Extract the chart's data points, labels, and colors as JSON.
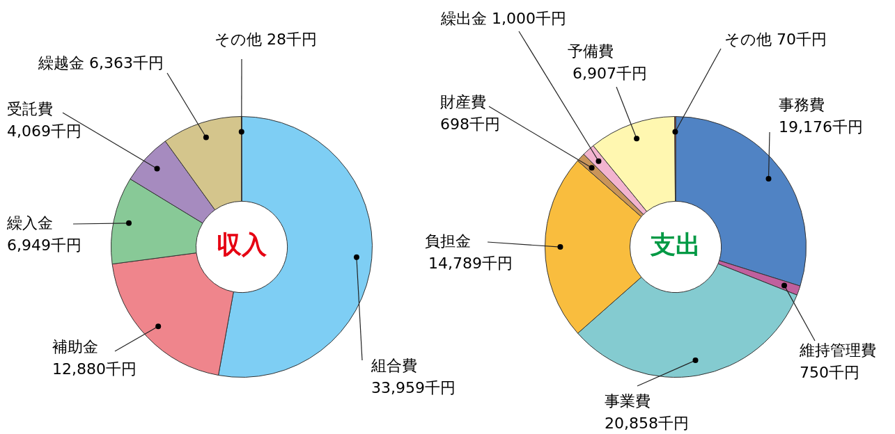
{
  "chart_data": [
    {
      "type": "donut",
      "title": "収入",
      "categories": [
        "組合費",
        "補助金",
        "繰入金",
        "受託費",
        "繰越金",
        "その他"
      ],
      "values": [
        33959,
        12880,
        6949,
        4069,
        6363,
        28
      ],
      "colors": [
        "#7ecef4",
        "#ef858c",
        "#88c997",
        "#a68bbf",
        "#d4c58c",
        "#e8502a"
      ],
      "value_labels": [
        "33,959千円",
        "12,880千円",
        "6,949千円",
        "4,069千円",
        "6,363千円",
        "28千円"
      ]
    },
    {
      "type": "donut",
      "title": "支出",
      "categories": [
        "事務費",
        "維持管理費",
        "事業費",
        "負担金",
        "財産費",
        "繰出金",
        "予備費",
        "その他"
      ],
      "values": [
        19176,
        750,
        20858,
        14789,
        698,
        1000,
        6907,
        70
      ],
      "colors": [
        "#5083c4",
        "#c0609e",
        "#84cbd0",
        "#f9bd3e",
        "#c9955a",
        "#f2b4cf",
        "#fff7b0",
        "#e8502a"
      ],
      "value_labels": [
        "19,176千円",
        "750千円",
        "20,858千円",
        "14,789千円",
        "698千円",
        "1,000千円",
        "6,907千円",
        "70千円"
      ]
    }
  ]
}
